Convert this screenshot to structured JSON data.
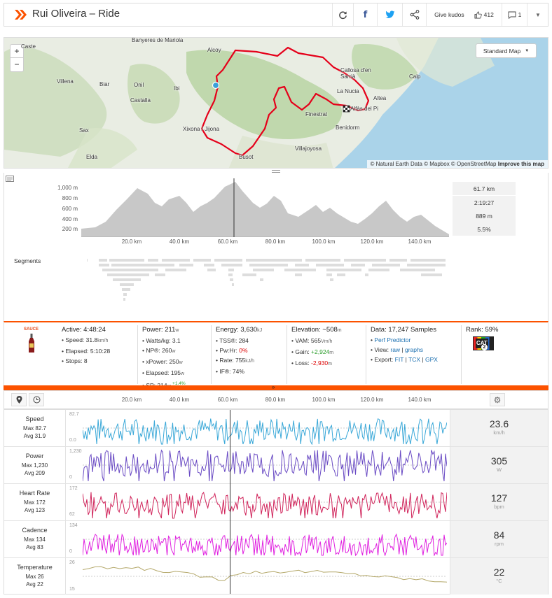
{
  "header": {
    "title": "Rui Oliveira – Ride",
    "kudos_label": "Give kudos",
    "kudos_count": "412",
    "comment_count": "1"
  },
  "map": {
    "zoom_in": "+",
    "zoom_out": "−",
    "map_type": "Standard Map",
    "attribution": "© Natural Earth Data © Mapbox © OpenStreetMap",
    "improve": "Improve this map",
    "labels": [
      {
        "text": "Banyeres de Mariola"
      },
      {
        "text": "Alcoy"
      },
      {
        "text": "Villena"
      },
      {
        "text": "Biar"
      },
      {
        "text": "Onil"
      },
      {
        "text": "Ibi"
      },
      {
        "text": "Castalla"
      },
      {
        "text": "Sax"
      },
      {
        "text": "Elda"
      },
      {
        "text": "Xixona / Jijona"
      },
      {
        "text": "Busot"
      },
      {
        "text": "Villajoyosa"
      },
      {
        "text": "Benidorm"
      },
      {
        "text": "Finestrat"
      },
      {
        "text": "La Nucia"
      },
      {
        "text": "Callosa d'en Sarrià"
      },
      {
        "text": "Altea"
      },
      {
        "text": "Calp"
      },
      {
        "text": "Alfàs del Pi"
      },
      {
        "text": "Caste"
      }
    ]
  },
  "elevation": {
    "y_ticks": [
      "1,000 m",
      "800 m",
      "600 m",
      "400 m",
      "200 m"
    ],
    "x_ticks": [
      "20.0 km",
      "40.0 km",
      "60.0 km",
      "80.0 km",
      "100.0 km",
      "120.0 km",
      "140.0 km"
    ],
    "side_stats": [
      "61.7 km",
      "2:19:27",
      "889 m",
      "5.5%"
    ],
    "segments_label": "Segments"
  },
  "stats": {
    "sauce": "SAUCE",
    "active": {
      "title": "Active:",
      "value": "4:48:24",
      "speed_label": "Speed:",
      "speed": "31.8",
      "speed_unit": "km/h",
      "elapsed_label": "Elapsed:",
      "elapsed": "5:10:28",
      "stops_label": "Stops:",
      "stops": "8"
    },
    "power": {
      "title": "Power:",
      "value": "211",
      "unit": "w",
      "wkg_label": "Watts/kg:",
      "wkg": "3.1",
      "np_label": "NP®:",
      "np": "260",
      "xp_label": "xPower:",
      "xp": "250",
      "el_label": "Elapsed:",
      "el": "195",
      "sp_label": "SP:",
      "sp": "214",
      "sp_delta": "+1.4%"
    },
    "energy": {
      "title": "Energy:",
      "value": "3,630",
      "unit": "kJ",
      "tss_label": "TSS®:",
      "tss": "284",
      "pwhr_label": "Pw:Hr:",
      "pwhr": "0%",
      "rate_label": "Rate:",
      "rate": "755",
      "rate_unit": "kJ/h",
      "if_label": "IF®:",
      "if": "74%"
    },
    "elevation": {
      "title": "Elevation:",
      "value": "~508",
      "unit": "m",
      "vam_label": "VAM:",
      "vam": "565",
      "vam_unit": "Vm/h",
      "gain_label": "Gain:",
      "gain": "+2,924",
      "loss_label": "Loss:",
      "loss": "-2,930",
      "m": "m"
    },
    "data": {
      "title": "Data:",
      "value": "17,247 Samples",
      "perf": "Perf Predictor",
      "view_label": "View:",
      "raw": "raw",
      "graphs": "graphs",
      "export_label": "Export:",
      "fit": "FIT",
      "tcx": "TCX",
      "gpx": "GPX"
    },
    "rank": {
      "title": "Rank:",
      "value": "59%",
      "badge": "CAT",
      "badge_num": "2"
    }
  },
  "streams": {
    "x_ticks": [
      "20.0 km",
      "40.0 km",
      "60.0 km",
      "80.0 km",
      "100.0 km",
      "120.0 km",
      "140.0 km"
    ],
    "rows": [
      {
        "name": "Speed",
        "max": "Max 82.7",
        "avg": "Avg 31.9",
        "ymax": "82.7",
        "ymin": "0.0",
        "value": "23.6",
        "unit": "km/h",
        "color": "#3aa8d8"
      },
      {
        "name": "Power",
        "max": "Max 1,230",
        "avg": "Avg 209",
        "ymax": "1,230",
        "ymin": "0",
        "value": "305",
        "unit": "W",
        "color": "#6a4bc4"
      },
      {
        "name": "Heart Rate",
        "max": "Max 172",
        "avg": "Avg 123",
        "ymax": "172",
        "ymin": "62",
        "value": "127",
        "unit": "bpm",
        "color": "#d0235a"
      },
      {
        "name": "Cadence",
        "max": "Max 134",
        "avg": "Avg 83",
        "ymax": "134",
        "ymin": "0",
        "value": "84",
        "unit": "rpm",
        "color": "#e020e0"
      },
      {
        "name": "Temperature",
        "max": "Max 26",
        "avg": "Avg 22",
        "ymax": "26",
        "ymin": "15",
        "value": "22",
        "unit": "°C",
        "color": "#b4a86a"
      }
    ]
  }
}
